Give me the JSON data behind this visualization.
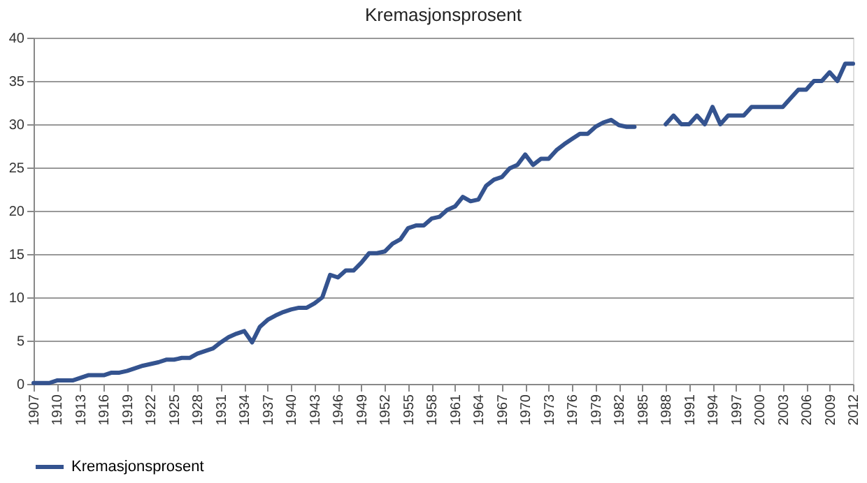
{
  "chart_data": {
    "type": "line",
    "title": "Kremasjonsprosent",
    "x": [
      1907,
      1908,
      1909,
      1910,
      1911,
      1912,
      1913,
      1914,
      1915,
      1916,
      1917,
      1918,
      1919,
      1920,
      1921,
      1922,
      1923,
      1924,
      1925,
      1926,
      1927,
      1928,
      1929,
      1930,
      1931,
      1932,
      1933,
      1934,
      1935,
      1936,
      1937,
      1938,
      1939,
      1940,
      1941,
      1942,
      1943,
      1944,
      1945,
      1946,
      1947,
      1948,
      1949,
      1950,
      1951,
      1952,
      1953,
      1954,
      1955,
      1956,
      1957,
      1958,
      1959,
      1960,
      1961,
      1962,
      1963,
      1964,
      1965,
      1966,
      1967,
      1968,
      1969,
      1970,
      1971,
      1972,
      1973,
      1974,
      1975,
      1976,
      1977,
      1978,
      1979,
      1980,
      1981,
      1982,
      1983,
      1984,
      1985,
      1986,
      1987,
      1988,
      1989,
      1990,
      1991,
      1992,
      1993,
      1994,
      1995,
      1996,
      1997,
      1998,
      1999,
      2000,
      2001,
      2002,
      2003,
      2004,
      2005,
      2006,
      2007,
      2008,
      2009,
      2010,
      2011,
      2012
    ],
    "series": [
      {
        "name": "Kremasjonsprosent",
        "color": "#34538f",
        "values": [
          0.1,
          0.1,
          0.1,
          0.4,
          0.4,
          0.4,
          0.7,
          1.0,
          1.0,
          1.0,
          1.3,
          1.3,
          1.5,
          1.8,
          2.1,
          2.3,
          2.5,
          2.8,
          2.8,
          3.0,
          3.0,
          3.5,
          3.8,
          4.1,
          4.8,
          5.4,
          5.8,
          6.1,
          4.8,
          6.6,
          7.4,
          7.9,
          8.3,
          8.6,
          8.8,
          8.8,
          9.3,
          10.0,
          12.6,
          12.3,
          13.1,
          13.1,
          14.0,
          15.1,
          15.1,
          15.3,
          16.2,
          16.7,
          18.0,
          18.3,
          18.3,
          19.1,
          19.3,
          20.1,
          20.5,
          21.6,
          21.1,
          21.3,
          22.9,
          23.6,
          23.9,
          24.9,
          25.3,
          26.5,
          25.3,
          26.0,
          26.0,
          27.0,
          27.7,
          28.3,
          28.9,
          28.9,
          29.7,
          30.2,
          30.5,
          29.9,
          29.7,
          29.7,
          null,
          null,
          null,
          30.0,
          31.0,
          30.0,
          30.0,
          31.0,
          30.0,
          32.0,
          30.0,
          31.0,
          31.0,
          31.0,
          32.0,
          32.0,
          32.0,
          32.0,
          32.0,
          33.0,
          34.0,
          34.0,
          35.0,
          35.0,
          36.0,
          35.0,
          37.0,
          37.0
        ]
      }
    ],
    "xlim": [
      1907,
      2012
    ],
    "xticks": [
      1907,
      1910,
      1913,
      1916,
      1919,
      1922,
      1925,
      1928,
      1931,
      1934,
      1937,
      1940,
      1943,
      1946,
      1949,
      1952,
      1955,
      1958,
      1961,
      1964,
      1967,
      1970,
      1973,
      1976,
      1979,
      1982,
      1985,
      1988,
      1991,
      1994,
      1997,
      2000,
      2003,
      2006,
      2009,
      2012
    ],
    "ylim": [
      0,
      40
    ],
    "yticks": [
      0,
      5,
      10,
      15,
      20,
      25,
      30,
      35,
      40
    ],
    "grid": "y",
    "legend": "bottom",
    "line_style": "solid",
    "marker": "none"
  }
}
